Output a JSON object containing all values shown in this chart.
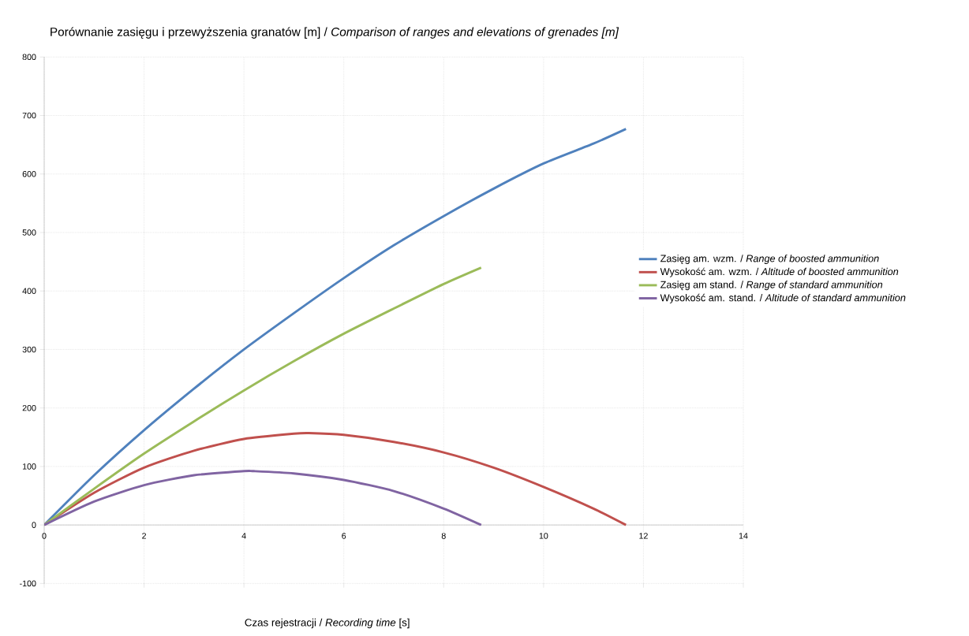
{
  "chart_data": {
    "type": "line",
    "title": "Porównanie zasięgu i przewyższenia granatów [m] / *Comparison of ranges and elevations of grenades [m]*",
    "xlabel": "Czas rejestracji / *Recording time* [s]",
    "xlim": [
      0,
      14
    ],
    "xticks": [
      0,
      2,
      4,
      6,
      8,
      10,
      12,
      14
    ],
    "ylim": [
      -100,
      800
    ],
    "yticks": [
      -100,
      0,
      100,
      200,
      300,
      400,
      500,
      600,
      700,
      800
    ],
    "grid": true,
    "legend": "right",
    "marker": "none",
    "line_style": "solid",
    "series": [
      {
        "name": "Zasięg am. wzm. / *Range of boosted ammunition*",
        "color": "#4f81bd",
        "x": [
          0,
          1,
          2,
          3,
          4,
          5,
          6,
          7,
          8,
          9,
          10,
          11,
          11.65
        ],
        "values": [
          0,
          85,
          162,
          233,
          300,
          362,
          422,
          478,
          528,
          575,
          618,
          652,
          677
        ]
      },
      {
        "name": "Wysokość am. wzm. / *Altitude of boosted ammunition*",
        "color": "#c0504d",
        "x": [
          0,
          1,
          2,
          3,
          4,
          5,
          5.3,
          6,
          7,
          8,
          9,
          10,
          11,
          11.65
        ],
        "values": [
          0,
          55,
          98,
          127,
          147,
          156,
          157,
          154,
          142,
          124,
          98,
          65,
          28,
          0
        ]
      },
      {
        "name": "Zasięg am stand. / *Range of standard ammunition*",
        "color": "#9bbb59",
        "x": [
          0,
          1,
          2,
          3,
          4,
          5,
          6,
          7,
          8,
          8.75
        ],
        "values": [
          0,
          62,
          122,
          177,
          230,
          280,
          327,
          370,
          412,
          440
        ]
      },
      {
        "name": "Wysokość am. stand. / *Altitude of standard ammunition*",
        "color": "#8064a2",
        "x": [
          0,
          1,
          2,
          3,
          4,
          4.2,
          5,
          6,
          7,
          8,
          8.75
        ],
        "values": [
          0,
          40,
          68,
          85,
          92,
          92,
          88,
          77,
          58,
          28,
          0
        ]
      }
    ]
  }
}
